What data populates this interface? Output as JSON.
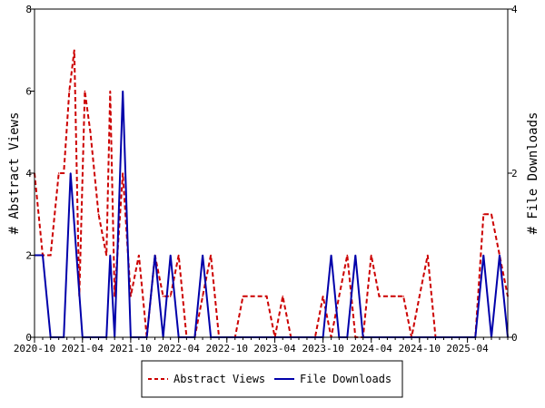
{
  "chart_data": {
    "type": "line",
    "ylabel_left": "# Abstract Views",
    "ylabel_right": "# File Downloads",
    "x_tick_labels": [
      "2020-10",
      "2021-04",
      "2021-10",
      "2022-04",
      "2022-10",
      "2023-04",
      "2023-10",
      "2024-04",
      "2024-10",
      "2025-04"
    ],
    "y_left_ticks": [
      "0",
      "2",
      "4",
      "6",
      "8"
    ],
    "y_right_ticks": [
      "0",
      "2",
      "4"
    ],
    "y_left_range": [
      0,
      8
    ],
    "y_right_range": [
      0,
      4
    ],
    "grid": false,
    "legend_position": "bottom",
    "x_months": [
      "2020-10",
      "2020-11",
      "2020-12",
      "2021-01",
      "2021-02",
      "2021-03",
      "2021-04",
      "2021-05",
      "2021-06",
      "2021-07",
      "2021-08",
      "2021-09",
      "2021-10",
      "2021-11",
      "2021-12",
      "2022-01",
      "2022-02",
      "2022-03",
      "2022-04",
      "2022-05",
      "2022-06",
      "2022-07",
      "2022-08",
      "2022-09",
      "2022-10",
      "2022-11",
      "2022-12",
      "2023-01",
      "2023-02",
      "2023-03",
      "2023-04",
      "2023-05",
      "2023-06",
      "2023-07",
      "2023-08",
      "2023-09",
      "2023-10",
      "2023-11",
      "2023-12",
      "2024-01",
      "2024-02",
      "2024-03",
      "2024-04",
      "2024-05",
      "2024-06",
      "2024-07",
      "2024-08",
      "2024-09",
      "2024-10",
      "2024-11",
      "2024-12",
      "2025-01",
      "2025-02",
      "2025-03",
      "2025-04",
      "2025-05",
      "2025-06",
      "2025-07",
      "2025-08",
      "2025-09"
    ],
    "series": [
      {
        "name": "Abstract Views",
        "axis": "left",
        "color": "#cc0000",
        "dash": true,
        "points": [
          [
            "2020-10-01",
            4
          ],
          [
            "2020-11-01",
            2
          ],
          [
            "2020-12-01",
            2
          ],
          [
            "2021-01-01",
            4
          ],
          [
            "2021-01-20",
            4
          ],
          [
            "2021-02-10",
            6
          ],
          [
            "2021-03-01",
            7
          ],
          [
            "2021-03-20",
            1
          ],
          [
            "2021-04-10",
            6
          ],
          [
            "2021-05-01",
            5
          ],
          [
            "2021-06-01",
            3
          ],
          [
            "2021-07-01",
            2
          ],
          [
            "2021-07-15",
            6
          ],
          [
            "2021-08-01",
            1
          ],
          [
            "2021-09-01",
            4
          ],
          [
            "2021-10-01",
            1
          ],
          [
            "2021-11-01",
            2
          ],
          [
            "2021-12-01",
            0
          ],
          [
            "2022-01-01",
            2
          ],
          [
            "2022-02-01",
            1
          ],
          [
            "2022-03-01",
            1
          ],
          [
            "2022-04-01",
            2
          ],
          [
            "2022-05-01",
            0
          ],
          [
            "2022-06-01",
            0
          ],
          [
            "2022-07-01",
            1
          ],
          [
            "2022-08-01",
            2
          ],
          [
            "2022-09-01",
            0
          ],
          [
            "2022-10-01",
            0
          ],
          [
            "2022-11-01",
            0
          ],
          [
            "2022-12-01",
            1
          ],
          [
            "2023-01-01",
            1
          ],
          [
            "2023-02-01",
            1
          ],
          [
            "2023-03-01",
            1
          ],
          [
            "2023-04-01",
            0
          ],
          [
            "2023-05-01",
            1
          ],
          [
            "2023-06-01",
            0
          ],
          [
            "2023-07-01",
            0
          ],
          [
            "2023-08-01",
            0
          ],
          [
            "2023-09-01",
            0
          ],
          [
            "2023-10-01",
            1
          ],
          [
            "2023-11-01",
            0
          ],
          [
            "2023-12-01",
            1
          ],
          [
            "2024-01-01",
            2
          ],
          [
            "2024-02-01",
            0
          ],
          [
            "2024-03-01",
            0
          ],
          [
            "2024-04-01",
            2
          ],
          [
            "2024-05-01",
            1
          ],
          [
            "2024-06-01",
            1
          ],
          [
            "2024-07-01",
            1
          ],
          [
            "2024-08-01",
            1
          ],
          [
            "2024-09-01",
            0
          ],
          [
            "2024-10-01",
            1
          ],
          [
            "2024-11-01",
            2
          ],
          [
            "2024-12-01",
            0
          ],
          [
            "2025-01-01",
            0
          ],
          [
            "2025-02-01",
            0
          ],
          [
            "2025-03-01",
            0
          ],
          [
            "2025-04-01",
            0
          ],
          [
            "2025-05-01",
            0
          ],
          [
            "2025-06-01",
            3
          ],
          [
            "2025-07-01",
            3
          ],
          [
            "2025-08-01",
            2
          ],
          [
            "2025-09-01",
            1
          ]
        ]
      },
      {
        "name": "File Downloads",
        "axis": "right",
        "color": "#0000aa",
        "dash": false,
        "points": [
          [
            "2020-10-01",
            1
          ],
          [
            "2020-11-01",
            1
          ],
          [
            "2020-12-01",
            0
          ],
          [
            "2021-01-01",
            0
          ],
          [
            "2021-01-20",
            0
          ],
          [
            "2021-02-15",
            2
          ],
          [
            "2021-04-01",
            0
          ],
          [
            "2021-05-01",
            0
          ],
          [
            "2021-06-01",
            0
          ],
          [
            "2021-07-01",
            0
          ],
          [
            "2021-07-15",
            1
          ],
          [
            "2021-08-01",
            0
          ],
          [
            "2021-09-01",
            3
          ],
          [
            "2021-10-01",
            0
          ],
          [
            "2021-11-01",
            0
          ],
          [
            "2021-12-01",
            0
          ],
          [
            "2022-01-01",
            1
          ],
          [
            "2022-02-01",
            0
          ],
          [
            "2022-03-01",
            1
          ],
          [
            "2022-04-01",
            0
          ],
          [
            "2022-05-01",
            0
          ],
          [
            "2022-06-01",
            0
          ],
          [
            "2022-07-01",
            1
          ],
          [
            "2022-08-01",
            0
          ],
          [
            "2022-09-01",
            0
          ],
          [
            "2023-10-01",
            0
          ],
          [
            "2023-11-01",
            1
          ],
          [
            "2023-12-01",
            0
          ],
          [
            "2024-01-01",
            0
          ],
          [
            "2024-02-01",
            1
          ],
          [
            "2024-03-01",
            0
          ],
          [
            "2024-04-01",
            0
          ],
          [
            "2025-05-01",
            0
          ],
          [
            "2025-06-01",
            1
          ],
          [
            "2025-07-01",
            0
          ],
          [
            "2025-08-01",
            1
          ],
          [
            "2025-09-01",
            0
          ]
        ]
      }
    ]
  }
}
